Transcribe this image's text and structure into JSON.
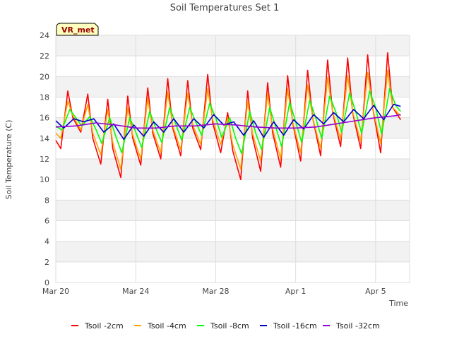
{
  "chart_data": {
    "type": "line",
    "title": "Soil Temperatures Set 1",
    "xlabel": "Time",
    "ylabel": "Soil Temperature (C)",
    "badge": "VR_met",
    "xlim": [
      0,
      17.7
    ],
    "ylim": [
      0,
      24
    ],
    "yticks": [
      0,
      2,
      4,
      6,
      8,
      10,
      12,
      14,
      16,
      18,
      20,
      22,
      24
    ],
    "xticks": [
      {
        "label": "Mar 20",
        "day": 0
      },
      {
        "label": "Mar 24",
        "day": 4
      },
      {
        "label": "Mar 28",
        "day": 8
      },
      {
        "label": "Apr 1",
        "day": 12
      },
      {
        "label": "Apr 5",
        "day": 16
      }
    ],
    "grid": true,
    "legend_position": "bottom",
    "series": [
      {
        "name": "Tsoil -2cm",
        "color": "#ff0000",
        "x": [
          0,
          0.25,
          0.6,
          0.85,
          1.25,
          1.6,
          1.85,
          2.25,
          2.6,
          2.85,
          3.25,
          3.6,
          3.85,
          4.25,
          4.6,
          4.85,
          5.25,
          5.6,
          5.85,
          6.25,
          6.6,
          6.85,
          7.25,
          7.6,
          7.85,
          8.25,
          8.6,
          8.85,
          9.25,
          9.6,
          9.85,
          10.25,
          10.6,
          10.85,
          11.25,
          11.6,
          11.85,
          12.25,
          12.6,
          12.85,
          13.25,
          13.6,
          13.85,
          14.25,
          14.6,
          14.85,
          15.25,
          15.6,
          15.85,
          16.25,
          16.6,
          16.85,
          17.25
        ],
        "y": [
          13.8,
          13.0,
          18.6,
          16.0,
          14.6,
          18.3,
          14.0,
          11.5,
          17.8,
          13.0,
          10.2,
          18.1,
          14.0,
          11.4,
          18.9,
          14.5,
          12.0,
          19.8,
          15.0,
          12.3,
          19.6,
          15.0,
          12.9,
          20.2,
          15.5,
          12.6,
          16.5,
          12.8,
          10.0,
          18.6,
          14.0,
          10.8,
          19.4,
          14.5,
          11.2,
          20.1,
          15.5,
          11.8,
          20.6,
          16.0,
          12.3,
          21.6,
          16.5,
          13.2,
          21.8,
          16.5,
          13.0,
          22.1,
          17.0,
          12.6,
          22.3,
          17.0,
          15.8
        ]
      },
      {
        "name": "Tsoil -4cm",
        "color": "#ffa500",
        "x": [
          0,
          0.25,
          0.6,
          0.85,
          1.25,
          1.6,
          1.85,
          2.25,
          2.6,
          2.85,
          3.25,
          3.6,
          3.85,
          4.25,
          4.6,
          4.85,
          5.25,
          5.6,
          5.85,
          6.25,
          6.6,
          6.85,
          7.25,
          7.6,
          7.85,
          8.25,
          8.6,
          8.85,
          9.25,
          9.6,
          9.85,
          10.25,
          10.6,
          10.85,
          11.25,
          11.6,
          11.85,
          12.25,
          12.6,
          12.85,
          13.25,
          13.6,
          13.85,
          14.25,
          14.6,
          14.85,
          15.25,
          15.6,
          15.85,
          16.25,
          16.6,
          16.85,
          17.25
        ],
        "y": [
          14.5,
          14.0,
          17.6,
          16.2,
          14.8,
          17.3,
          14.5,
          12.4,
          16.8,
          13.6,
          11.0,
          17.0,
          14.3,
          12.0,
          17.9,
          14.8,
          12.6,
          18.5,
          15.2,
          12.9,
          18.4,
          15.3,
          13.4,
          18.8,
          15.8,
          13.4,
          16.0,
          13.4,
          11.0,
          17.6,
          14.4,
          11.8,
          18.3,
          14.9,
          12.0,
          18.8,
          15.6,
          12.6,
          19.2,
          16.0,
          13.0,
          19.9,
          16.6,
          13.9,
          20.1,
          16.6,
          13.7,
          20.4,
          17.0,
          13.5,
          20.6,
          17.0,
          16.2
        ]
      },
      {
        "name": "Tsoil -8cm",
        "color": "#00ff00",
        "x": [
          0,
          0.3,
          0.7,
          1.0,
          1.3,
          1.7,
          2.0,
          2.3,
          2.7,
          3.0,
          3.3,
          3.7,
          4.0,
          4.3,
          4.7,
          5.0,
          5.3,
          5.7,
          6.0,
          6.3,
          6.7,
          7.0,
          7.3,
          7.7,
          8.0,
          8.3,
          8.7,
          9.0,
          9.3,
          9.7,
          10.0,
          10.3,
          10.7,
          11.0,
          11.3,
          11.7,
          12.0,
          12.3,
          12.7,
          13.0,
          13.3,
          13.7,
          14.0,
          14.3,
          14.7,
          15.0,
          15.3,
          15.7,
          16.0,
          16.3,
          16.7,
          17.0,
          17.25
        ],
        "y": [
          15.2,
          14.8,
          16.8,
          16.0,
          15.2,
          16.1,
          14.9,
          13.5,
          16.0,
          14.2,
          12.6,
          16.0,
          14.6,
          13.1,
          16.6,
          15.0,
          13.6,
          17.0,
          15.4,
          13.8,
          17.0,
          15.6,
          14.3,
          17.4,
          16.0,
          14.1,
          16.0,
          14.0,
          12.5,
          16.6,
          14.5,
          12.9,
          17.0,
          15.1,
          13.2,
          17.5,
          15.6,
          13.6,
          17.7,
          16.0,
          14.0,
          18.1,
          16.6,
          14.6,
          18.4,
          16.6,
          14.5,
          18.6,
          17.0,
          14.4,
          18.8,
          17.2,
          16.6
        ]
      },
      {
        "name": "Tsoil -16cm",
        "color": "#0000cd",
        "x": [
          0,
          0.4,
          0.9,
          1.4,
          1.9,
          2.4,
          2.9,
          3.4,
          3.9,
          4.4,
          4.9,
          5.4,
          5.9,
          6.4,
          6.9,
          7.4,
          7.9,
          8.4,
          8.9,
          9.4,
          9.9,
          10.4,
          10.9,
          11.4,
          11.9,
          12.4,
          12.9,
          13.4,
          13.9,
          14.4,
          14.9,
          15.4,
          15.9,
          16.4,
          16.9,
          17.25
        ],
        "y": [
          15.7,
          15.0,
          15.9,
          15.6,
          15.9,
          14.6,
          15.4,
          13.9,
          15.3,
          14.2,
          15.6,
          14.6,
          15.9,
          14.6,
          15.9,
          15.0,
          16.3,
          15.3,
          15.6,
          14.3,
          15.7,
          14.1,
          15.6,
          14.3,
          15.8,
          14.9,
          16.3,
          15.4,
          16.5,
          15.6,
          16.8,
          15.9,
          17.2,
          15.8,
          17.3,
          17.1
        ]
      },
      {
        "name": "Tsoil -32cm",
        "color": "#9400d3",
        "x": [
          0,
          1,
          2,
          3,
          4,
          5,
          6,
          7,
          8,
          9,
          10,
          11,
          12,
          13,
          14,
          15,
          16,
          17,
          17.25
        ],
        "y": [
          15.1,
          15.2,
          15.5,
          15.3,
          15.0,
          15.0,
          15.2,
          15.2,
          15.4,
          15.3,
          15.1,
          15.0,
          15.0,
          15.1,
          15.4,
          15.7,
          16.0,
          16.2,
          16.3
        ]
      }
    ]
  }
}
